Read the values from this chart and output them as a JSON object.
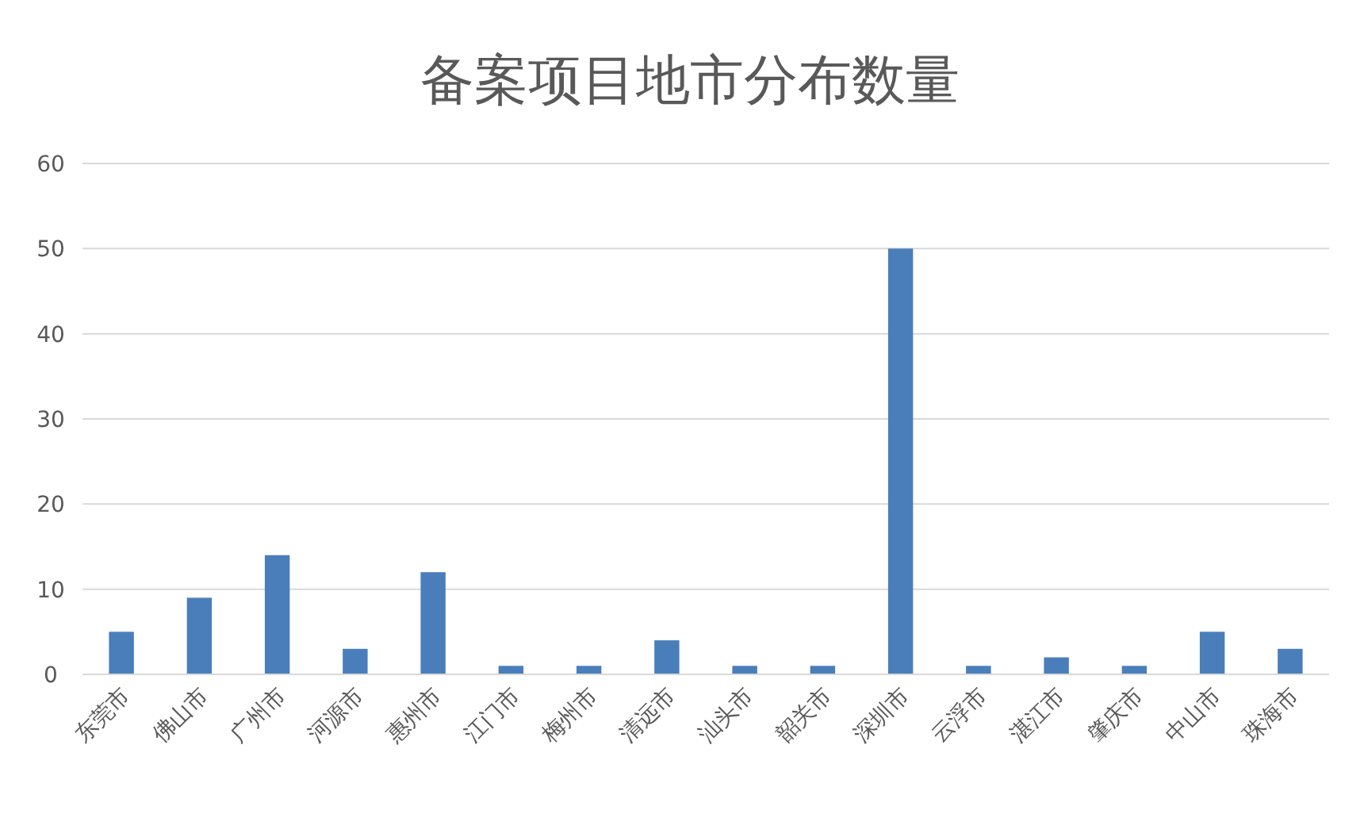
{
  "chart_data": {
    "type": "bar",
    "title": "备案项目地市分布数量",
    "categories": [
      "东莞市",
      "佛山市",
      "广州市",
      "河源市",
      "惠州市",
      "江门市",
      "梅州市",
      "清远市",
      "汕头市",
      "韶关市",
      "深圳市",
      "云浮市",
      "湛江市",
      "肇庆市",
      "中山市",
      "珠海市"
    ],
    "values": [
      5,
      9,
      14,
      3,
      12,
      1,
      1,
      4,
      1,
      1,
      50,
      1,
      2,
      1,
      5,
      3
    ],
    "color": "#4a7ebb",
    "ylim": [
      0,
      60
    ],
    "yticks": [
      0,
      10,
      20,
      30,
      40,
      50,
      60
    ],
    "grid": "y"
  }
}
